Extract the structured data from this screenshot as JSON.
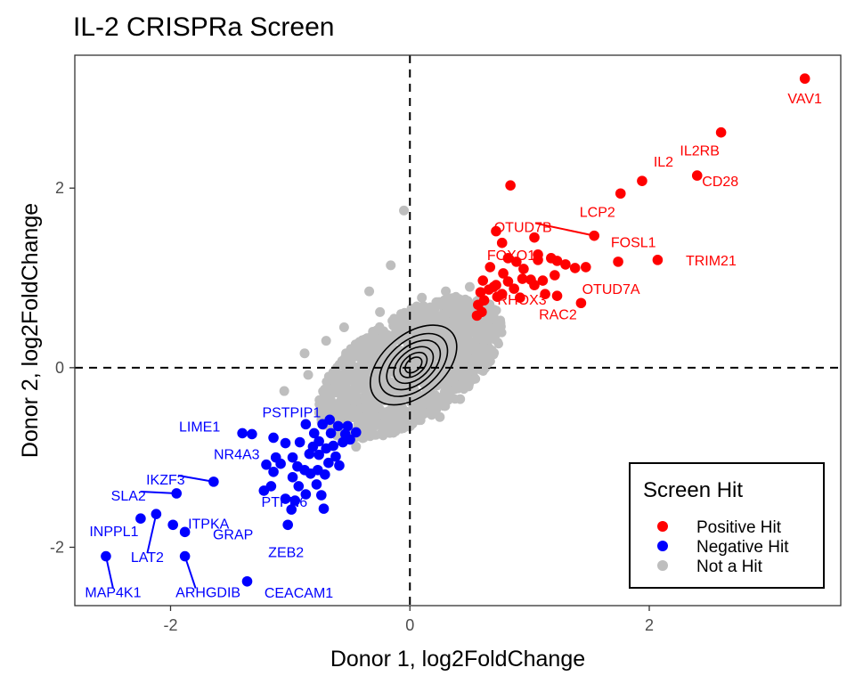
{
  "chart_data": {
    "type": "scatter",
    "title": "IL-2 CRISPRa Screen",
    "xlabel": "Donor 1, log2FoldChange",
    "ylabel": "Donor 2, log2FoldChange",
    "xlim": [
      -2.8,
      3.6
    ],
    "ylim": [
      -2.65,
      3.48
    ],
    "xticks": [
      -2,
      0,
      2
    ],
    "yticks": [
      -2,
      0,
      2
    ],
    "tick_labels": {
      "x": [
        "-2",
        "0",
        "2"
      ],
      "y": [
        "-2",
        "0",
        "2"
      ]
    },
    "reference_lines": {
      "x": 0,
      "y": 0,
      "style": "dashed"
    },
    "grid": false,
    "legend": {
      "title": "Screen Hit",
      "placement": "bottom-right",
      "entries": [
        {
          "label": "Positive Hit",
          "color": "#ff0000"
        },
        {
          "label": "Negative Hit",
          "color": "#0000ff"
        },
        {
          "label": "Not a Hit",
          "color": "#bebebe"
        }
      ]
    },
    "series": [
      {
        "name": "Positive Hit",
        "color": "#ff0000",
        "points": [
          [
            3.3,
            3.22
          ],
          [
            2.6,
            2.62
          ],
          [
            2.4,
            2.14
          ],
          [
            1.94,
            2.08
          ],
          [
            1.76,
            1.94
          ],
          [
            1.54,
            1.47
          ],
          [
            2.07,
            1.2
          ],
          [
            1.74,
            1.18
          ],
          [
            0.84,
            2.03
          ],
          [
            1.47,
            1.12
          ],
          [
            1.43,
            0.72
          ],
          [
            0.72,
            1.52
          ],
          [
            0.77,
            1.39
          ],
          [
            0.82,
            1.22
          ],
          [
            1.04,
            1.45
          ],
          [
            0.67,
            1.12
          ],
          [
            0.89,
            1.18
          ],
          [
            0.78,
            1.05
          ],
          [
            0.61,
            0.97
          ],
          [
            0.72,
            0.92
          ],
          [
            0.82,
            0.96
          ],
          [
            0.95,
            1.1
          ],
          [
            1.07,
            1.2
          ],
          [
            1.18,
            1.22
          ],
          [
            1.23,
            1.19
          ],
          [
            1.3,
            1.15
          ],
          [
            1.38,
            1.11
          ],
          [
            1.01,
            0.98
          ],
          [
            1.11,
            0.97
          ],
          [
            1.21,
            1.03
          ],
          [
            1.07,
            1.26
          ],
          [
            0.87,
            0.88
          ],
          [
            0.66,
            0.87
          ],
          [
            0.59,
            0.84
          ],
          [
            0.57,
            0.7
          ],
          [
            0.62,
            0.75
          ],
          [
            0.73,
            0.79
          ],
          [
            0.92,
            0.78
          ],
          [
            1.04,
            0.92
          ],
          [
            1.13,
            0.82
          ],
          [
            1.23,
            0.8
          ],
          [
            0.7,
            0.9
          ],
          [
            0.56,
            0.58
          ],
          [
            0.6,
            0.62
          ],
          [
            0.94,
            0.99
          ],
          [
            0.77,
            0.82
          ]
        ],
        "labels": [
          {
            "text": "VAV1",
            "point": [
              3.3,
              3.22
            ]
          },
          {
            "text": "IL2RB",
            "point": [
              2.6,
              2.62
            ]
          },
          {
            "text": "IL2",
            "point": [
              1.94,
              2.08
            ]
          },
          {
            "text": "CD28",
            "point": [
              2.4,
              2.14
            ]
          },
          {
            "text": "LCP2",
            "point": [
              1.76,
              1.94
            ]
          },
          {
            "text": "OTUD7B",
            "point": [
              1.54,
              1.47
            ]
          },
          {
            "text": "FOSL1",
            "point": [
              1.54,
              1.47
            ]
          },
          {
            "text": "TRIM21",
            "point": [
              2.07,
              1.2
            ]
          },
          {
            "text": "FOXO1",
            "point": [
              1.07,
              1.2
            ]
          },
          {
            "text": "RHOX3",
            "point": [
              1.13,
              0.82
            ]
          },
          {
            "text": "OTUD7A",
            "point": [
              1.74,
              1.18
            ]
          },
          {
            "text": "RAC2",
            "point": [
              1.43,
              0.72
            ]
          }
        ]
      },
      {
        "name": "Negative Hit",
        "color": "#0000ff",
        "points": [
          [
            -2.54,
            -2.1
          ],
          [
            -2.25,
            -1.68
          ],
          [
            -2.12,
            -1.63
          ],
          [
            -1.98,
            -1.75
          ],
          [
            -1.88,
            -1.83
          ],
          [
            -1.95,
            -1.4
          ],
          [
            -1.64,
            -1.27
          ],
          [
            -1.88,
            -2.1
          ],
          [
            -1.36,
            -2.38
          ],
          [
            -1.4,
            -0.73
          ],
          [
            -1.32,
            -0.74
          ],
          [
            -1.14,
            -0.78
          ],
          [
            -1.12,
            -1.0
          ],
          [
            -1.08,
            -1.07
          ],
          [
            -1.04,
            -0.84
          ],
          [
            -0.98,
            -1.0
          ],
          [
            -0.92,
            -0.83
          ],
          [
            -0.87,
            -0.63
          ],
          [
            -0.8,
            -0.73
          ],
          [
            -0.73,
            -0.63
          ],
          [
            -0.67,
            -0.58
          ],
          [
            -0.6,
            -0.65
          ],
          [
            -0.52,
            -0.65
          ],
          [
            -0.5,
            -0.8
          ],
          [
            -0.45,
            -0.72
          ],
          [
            -0.84,
            -0.96
          ],
          [
            -0.76,
            -0.97
          ],
          [
            -0.7,
            -0.9
          ],
          [
            -0.64,
            -0.87
          ],
          [
            -0.56,
            -0.83
          ],
          [
            -0.94,
            -1.1
          ],
          [
            -0.88,
            -1.14
          ],
          [
            -0.83,
            -1.18
          ],
          [
            -0.77,
            -1.14
          ],
          [
            -0.68,
            -1.06
          ],
          [
            -0.62,
            -0.99
          ],
          [
            -0.59,
            -1.09
          ],
          [
            -1.2,
            -1.08
          ],
          [
            -1.14,
            -1.16
          ],
          [
            -0.98,
            -1.22
          ],
          [
            -0.93,
            -1.32
          ],
          [
            -0.87,
            -1.41
          ],
          [
            -0.78,
            -1.3
          ],
          [
            -0.74,
            -1.42
          ],
          [
            -1.16,
            -1.32
          ],
          [
            -1.22,
            -1.37
          ],
          [
            -1.04,
            -1.46
          ],
          [
            -0.99,
            -1.58
          ],
          [
            -1.02,
            -1.75
          ],
          [
            -0.96,
            -1.48
          ],
          [
            -0.72,
            -1.57
          ],
          [
            -0.76,
            -0.82
          ],
          [
            -0.66,
            -0.73
          ],
          [
            -0.54,
            -0.74
          ],
          [
            -0.71,
            -1.19
          ],
          [
            -0.81,
            -0.88
          ]
        ],
        "labels": [
          {
            "text": "LIME1",
            "point": [
              -1.4,
              -0.73
            ]
          },
          {
            "text": "PSTPIP1",
            "point": [
              -0.87,
              -0.63
            ]
          },
          {
            "text": "NR4A3",
            "point": [
              -1.12,
              -1.0
            ]
          },
          {
            "text": "PTPN6",
            "point": [
              -0.87,
              -1.41
            ]
          },
          {
            "text": "ZEB2",
            "point": [
              -1.02,
              -1.75
            ]
          },
          {
            "text": "IKZF3",
            "point": [
              -1.64,
              -1.27
            ]
          },
          {
            "text": "SLA2",
            "point": [
              -1.95,
              -1.4
            ]
          },
          {
            "text": "ITPKA",
            "point": [
              -1.98,
              -1.75
            ]
          },
          {
            "text": "INPPL1",
            "point": [
              -2.25,
              -1.68
            ]
          },
          {
            "text": "LAT2",
            "point": [
              -2.12,
              -1.63
            ]
          },
          {
            "text": "GRAP",
            "point": [
              -1.88,
              -1.83
            ]
          },
          {
            "text": "MAP4K1",
            "point": [
              -2.54,
              -2.1
            ]
          },
          {
            "text": "ARHGDIB",
            "point": [
              -1.88,
              -2.1
            ]
          },
          {
            "text": "CEACAM1",
            "point": [
              -1.36,
              -2.38
            ]
          }
        ]
      },
      {
        "name": "Not a Hit",
        "color": "#bebebe",
        "points": [
          [
            -0.05,
            1.75
          ],
          [
            -0.16,
            1.14
          ],
          [
            -0.34,
            0.85
          ],
          [
            0.45,
            0.6
          ],
          [
            -0.88,
            0.16
          ],
          [
            -1.05,
            -0.26
          ],
          [
            0.5,
            0.9
          ],
          [
            -0.7,
            0.3
          ],
          [
            0.3,
            0.85
          ],
          [
            -0.45,
            -0.88
          ],
          [
            0.55,
            0.45
          ],
          [
            0.62,
            0.3
          ],
          [
            -0.55,
            0.45
          ],
          [
            0.1,
            0.78
          ],
          [
            -0.25,
            0.62
          ],
          [
            -0.6,
            -0.5
          ],
          [
            0.25,
            -0.55
          ],
          [
            0.65,
            0.05
          ],
          [
            -0.85,
            -0.08
          ],
          [
            0.42,
            -0.35
          ]
        ],
        "cloud": {
          "center": [
            0.0,
            0.0
          ],
          "extent": "x -0.7 to 0.65, y -0.78 to 0.8"
        }
      }
    ]
  }
}
